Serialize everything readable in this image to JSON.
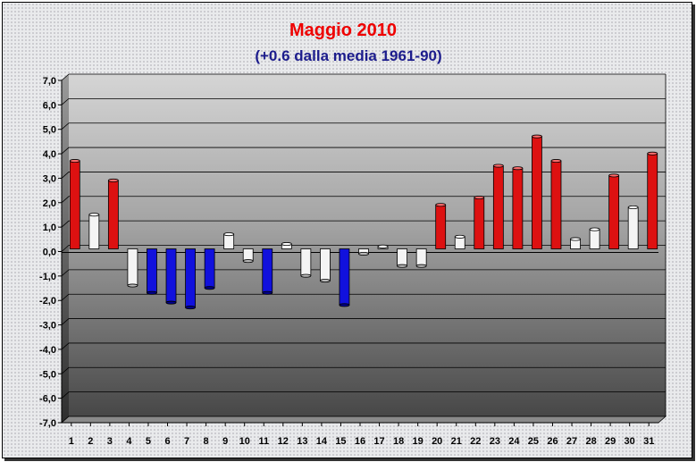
{
  "chart_data": {
    "type": "bar",
    "title": "Maggio 2010",
    "subtitle": "(+0.6 dalla media 1961-90)",
    "xlabel": "",
    "ylabel": "",
    "categories": [
      "1",
      "2",
      "3",
      "4",
      "5",
      "6",
      "7",
      "8",
      "9",
      "10",
      "11",
      "12",
      "13",
      "14",
      "15",
      "16",
      "17",
      "18",
      "19",
      "20",
      "21",
      "22",
      "23",
      "24",
      "25",
      "26",
      "27",
      "28",
      "29",
      "30",
      "31"
    ],
    "values": [
      3.6,
      1.4,
      2.8,
      -1.5,
      -1.8,
      -2.2,
      -2.4,
      -1.6,
      0.6,
      -0.5,
      -1.8,
      0.2,
      -1.1,
      -1.3,
      -2.3,
      -0.2,
      0.1,
      -0.7,
      -0.7,
      1.8,
      0.5,
      2.1,
      3.4,
      3.3,
      4.6,
      3.6,
      0.4,
      0.8,
      3.0,
      1.7,
      3.9
    ],
    "bar_colors": [
      "red",
      "white",
      "red",
      "white",
      "blue",
      "blue",
      "blue",
      "blue",
      "white",
      "white",
      "blue",
      "white",
      "white",
      "white",
      "blue",
      "white",
      "white",
      "white",
      "white",
      "red",
      "white",
      "red",
      "red",
      "red",
      "red",
      "red",
      "white",
      "white",
      "red",
      "white",
      "red"
    ],
    "ylim": [
      -7,
      7
    ],
    "yticks": [
      "7,0",
      "6,0",
      "5,0",
      "4,0",
      "3,0",
      "2,0",
      "1,0",
      "0,0",
      "-1,0",
      "-2,0",
      "-3,0",
      "-4,0",
      "-5,0",
      "-6,0",
      "-7,0"
    ],
    "grid": true,
    "legend": "none"
  },
  "colors": {
    "title": "#ee0000",
    "subtitle": "#1c1c8c",
    "red": "#dd1111",
    "blue": "#1111dd",
    "white": "#f4f4f4"
  }
}
